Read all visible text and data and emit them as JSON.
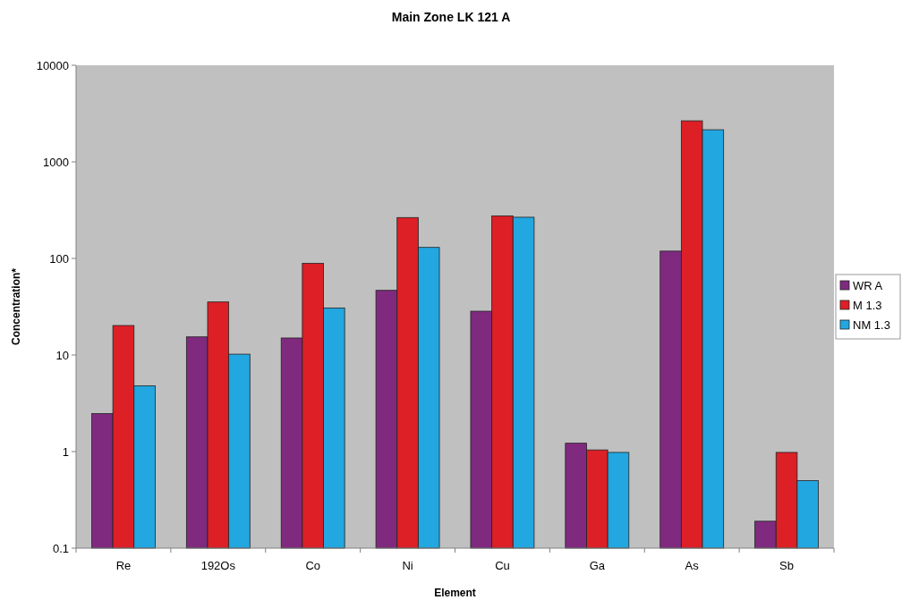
{
  "chart_data": {
    "type": "bar",
    "title": "Main Zone LK 121 A",
    "xlabel": "Element",
    "ylabel": "Concentration*",
    "categories": [
      "Re",
      "192Os",
      "Co",
      "Ni",
      "Cu",
      "Ga",
      "As",
      "Sb"
    ],
    "series": [
      {
        "name": "WR A",
        "color": "#7f2a7f",
        "values": [
          2.47,
          15.4,
          15.0,
          46.7,
          28.4,
          1.22,
          119,
          0.19
        ]
      },
      {
        "name": "M 1.3",
        "color": "#dd1f26",
        "values": [
          20.2,
          35.4,
          89,
          265,
          276,
          1.04,
          2660,
          0.98
        ]
      },
      {
        "name": "NM 1.3",
        "color": "#22a7e0",
        "values": [
          4.8,
          10.2,
          30.7,
          130,
          267,
          0.98,
          2150,
          0.5
        ]
      }
    ],
    "log": true,
    "ylim": [
      0.1,
      10000
    ],
    "yticks": [
      0.1,
      1,
      10,
      100,
      1000,
      10000
    ],
    "legend": "right"
  }
}
